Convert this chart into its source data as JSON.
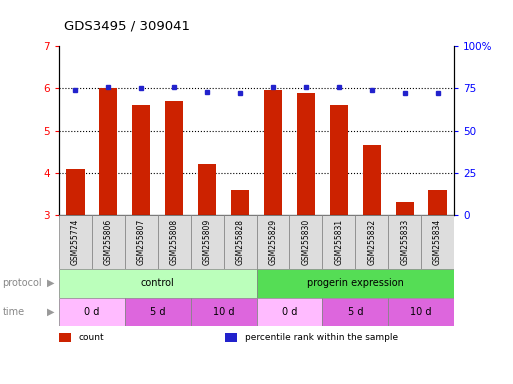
{
  "title": "GDS3495 / 309041",
  "samples": [
    "GSM255774",
    "GSM255806",
    "GSM255807",
    "GSM255808",
    "GSM255809",
    "GSM255828",
    "GSM255829",
    "GSM255830",
    "GSM255831",
    "GSM255832",
    "GSM255833",
    "GSM255834"
  ],
  "bar_values": [
    4.1,
    6.0,
    5.6,
    5.7,
    4.2,
    3.6,
    5.95,
    5.9,
    5.6,
    4.65,
    3.3,
    3.6
  ],
  "dot_values": [
    74,
    76,
    75,
    75.5,
    73,
    72,
    76,
    76,
    75.5,
    74,
    72.5,
    72.5
  ],
  "ylim_left": [
    3,
    7
  ],
  "ylim_right": [
    0,
    100
  ],
  "yticks_left": [
    3,
    4,
    5,
    6,
    7
  ],
  "yticks_right": [
    0,
    25,
    50,
    75,
    100
  ],
  "bar_color": "#cc2200",
  "dot_color": "#2222cc",
  "protocol_groups": [
    {
      "label": "control",
      "start": 0,
      "end": 6,
      "color": "#bbffbb"
    },
    {
      "label": "progerin expression",
      "start": 6,
      "end": 12,
      "color": "#55dd55"
    }
  ],
  "time_groups": [
    {
      "label": "0 d",
      "start": 0,
      "end": 2,
      "color": "#ffbbff"
    },
    {
      "label": "5 d",
      "start": 2,
      "end": 4,
      "color": "#dd66dd"
    },
    {
      "label": "10 d",
      "start": 4,
      "end": 6,
      "color": "#dd66dd"
    },
    {
      "label": "0 d",
      "start": 6,
      "end": 8,
      "color": "#ffbbff"
    },
    {
      "label": "5 d",
      "start": 8,
      "end": 10,
      "color": "#dd66dd"
    },
    {
      "label": "10 d",
      "start": 10,
      "end": 12,
      "color": "#dd66dd"
    }
  ],
  "legend_items": [
    {
      "label": "count",
      "color": "#cc2200"
    },
    {
      "label": "percentile rank within the sample",
      "color": "#2222cc"
    }
  ],
  "sample_box_color": "#dddddd",
  "arrow_color": "#999999",
  "label_color": "#888888"
}
